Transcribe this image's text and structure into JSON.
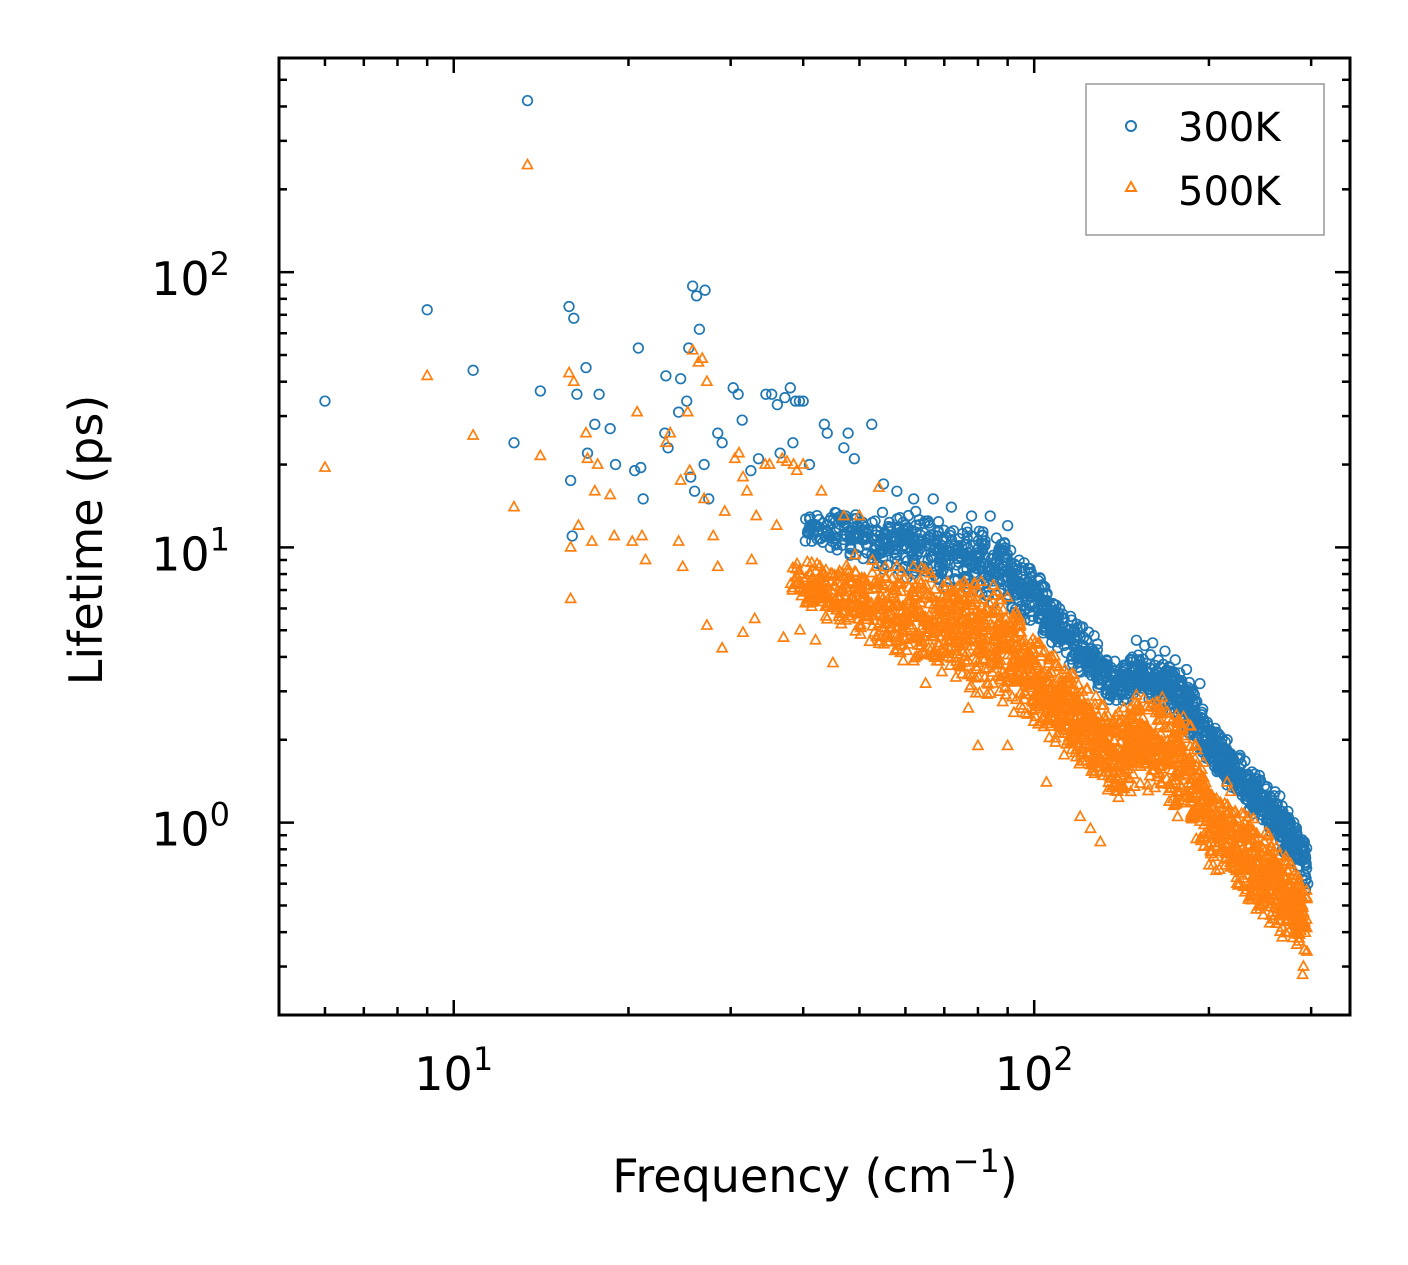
{
  "chart_data": {
    "type": "scatter",
    "title": "",
    "xlabel": "Frequency (cm",
    "xlabel_sup": "−1",
    "xlabel_end": ")",
    "ylabel": "Lifetime (ps)",
    "xscale": "log",
    "yscale": "log",
    "xlim": [
      5,
      350
    ],
    "ylim": [
      0.2,
      600
    ],
    "x_ticks": [
      {
        "value": 10,
        "base": "10",
        "exp": "1"
      },
      {
        "value": 100,
        "base": "10",
        "exp": "2"
      }
    ],
    "y_ticks": [
      {
        "value": 1,
        "base": "10",
        "exp": "0"
      },
      {
        "value": 10,
        "base": "10",
        "exp": "1"
      },
      {
        "value": 100,
        "base": "10",
        "exp": "2"
      }
    ],
    "legend": {
      "placement": "top-right"
    },
    "series": [
      {
        "name": "300K",
        "marker": "circle",
        "color": "#1f77b4",
        "points": [
          [
            6.0,
            34
          ],
          [
            9.0,
            73
          ],
          [
            10.8,
            44
          ],
          [
            12.7,
            24
          ],
          [
            13.4,
            420
          ],
          [
            14.1,
            37
          ],
          [
            15.8,
            75
          ],
          [
            16.1,
            68
          ],
          [
            16.3,
            36
          ],
          [
            16.9,
            45
          ],
          [
            17.5,
            28
          ],
          [
            17.8,
            36
          ],
          [
            18.6,
            27
          ],
          [
            15.9,
            17.5
          ],
          [
            16.0,
            11
          ],
          [
            17.0,
            22
          ],
          [
            19.0,
            20
          ],
          [
            20.5,
            19
          ],
          [
            21.0,
            19.5
          ],
          [
            21.2,
            15
          ],
          [
            20.8,
            53
          ],
          [
            23.2,
            42
          ],
          [
            24.6,
            41
          ],
          [
            25.4,
            53
          ],
          [
            25.8,
            89
          ],
          [
            26.2,
            82
          ],
          [
            26.5,
            62
          ],
          [
            27.1,
            86
          ],
          [
            23.1,
            26
          ],
          [
            23.4,
            23
          ],
          [
            24.4,
            31
          ],
          [
            25.2,
            34
          ],
          [
            25.6,
            18
          ],
          [
            26.0,
            16
          ],
          [
            27.0,
            20
          ],
          [
            27.5,
            15
          ],
          [
            28.5,
            26
          ],
          [
            29.0,
            24
          ],
          [
            30.3,
            38
          ],
          [
            30.9,
            36
          ],
          [
            31.4,
            29
          ],
          [
            32.5,
            19
          ],
          [
            33.5,
            21
          ],
          [
            34.5,
            36
          ],
          [
            35.3,
            36
          ],
          [
            36.1,
            33
          ],
          [
            37.2,
            35
          ],
          [
            38.0,
            38
          ],
          [
            38.8,
            34
          ],
          [
            39.4,
            34
          ],
          [
            40.0,
            34
          ],
          [
            36.5,
            22
          ],
          [
            38.4,
            24
          ],
          [
            41.0,
            20
          ],
          [
            43.5,
            28
          ],
          [
            44.0,
            26
          ],
          [
            47.0,
            23
          ],
          [
            47.8,
            26
          ],
          [
            49.0,
            21
          ],
          [
            52.5,
            28
          ],
          [
            55.0,
            17
          ],
          [
            58.0,
            16
          ],
          [
            62.0,
            15
          ],
          [
            67.0,
            15
          ],
          [
            72.0,
            14
          ],
          [
            78.0,
            13
          ],
          [
            84.0,
            13
          ],
          [
            90.0,
            12
          ],
          [
            150.0,
            4.6
          ],
          [
            155.0,
            4.4
          ],
          [
            160.0,
            4.5
          ],
          [
            168.0,
            4.2
          ],
          [
            175.0,
            3.9
          ],
          [
            183.0,
            3.6
          ],
          [
            193.0,
            3.2
          ],
          [
            205.0,
            2.2
          ],
          [
            215.0,
            2.0
          ],
          [
            225.0,
            1.7
          ],
          [
            240.0,
            1.5
          ],
          [
            252.0,
            1.35
          ],
          [
            265.0,
            1.25
          ],
          [
            280.0,
            1.0
          ],
          [
            292.0,
            0.85
          ],
          [
            296.0,
            0.6
          ]
        ]
      },
      {
        "name": "500K",
        "marker": "triangle",
        "color": "#ff7f0e",
        "points": [
          [
            6.0,
            19.5
          ],
          [
            9.0,
            42
          ],
          [
            10.8,
            25.5
          ],
          [
            12.7,
            14
          ],
          [
            13.4,
            245
          ],
          [
            14.1,
            21.5
          ],
          [
            15.8,
            43
          ],
          [
            16.1,
            40
          ],
          [
            15.9,
            10
          ],
          [
            15.9,
            6.5
          ],
          [
            16.4,
            12
          ],
          [
            16.9,
            26
          ],
          [
            17.0,
            21
          ],
          [
            17.5,
            16
          ],
          [
            17.7,
            20
          ],
          [
            17.3,
            10.5
          ],
          [
            18.6,
            15.5
          ],
          [
            18.9,
            11
          ],
          [
            20.3,
            10.5
          ],
          [
            20.7,
            31
          ],
          [
            21.1,
            11
          ],
          [
            21.4,
            9
          ],
          [
            23.2,
            24
          ],
          [
            23.6,
            26
          ],
          [
            24.6,
            17.5
          ],
          [
            24.4,
            10.5
          ],
          [
            24.8,
            8.5
          ],
          [
            25.3,
            31
          ],
          [
            25.5,
            19
          ],
          [
            25.8,
            52
          ],
          [
            26.4,
            47
          ],
          [
            26.8,
            48.5
          ],
          [
            27.3,
            40
          ],
          [
            27.0,
            15
          ],
          [
            28.0,
            11
          ],
          [
            28.5,
            8.5
          ],
          [
            29.3,
            13.5
          ],
          [
            30.5,
            21
          ],
          [
            31.0,
            22
          ],
          [
            31.5,
            18
          ],
          [
            32.0,
            16
          ],
          [
            32.6,
            9
          ],
          [
            33.2,
            13
          ],
          [
            34.4,
            20
          ],
          [
            35.0,
            20
          ],
          [
            36.0,
            12
          ],
          [
            36.8,
            21
          ],
          [
            37.5,
            20.5
          ],
          [
            38.5,
            20
          ],
          [
            39.0,
            19
          ],
          [
            40.0,
            20
          ],
          [
            27.3,
            5.2
          ],
          [
            29.0,
            4.3
          ],
          [
            31.5,
            4.9
          ],
          [
            33.0,
            5.5
          ],
          [
            37.0,
            4.7
          ],
          [
            39.5,
            5.0
          ],
          [
            42.0,
            4.6
          ],
          [
            45.0,
            3.8
          ],
          [
            43.0,
            16
          ],
          [
            47.0,
            13
          ],
          [
            50.0,
            13
          ],
          [
            54.0,
            16.5
          ],
          [
            65.0,
            3.2
          ],
          [
            77.0,
            2.6
          ],
          [
            80.0,
            1.9
          ],
          [
            90.0,
            1.9
          ],
          [
            105.0,
            1.4
          ],
          [
            120.0,
            1.05
          ],
          [
            125.0,
            0.95
          ],
          [
            130.0,
            0.85
          ],
          [
            138.0,
            1.3
          ],
          [
            150.0,
            2.9
          ],
          [
            160.0,
            2.7
          ],
          [
            170.0,
            2.5
          ],
          [
            180.0,
            2.2
          ],
          [
            190.0,
            1.9
          ],
          [
            200.0,
            0.7
          ],
          [
            215.0,
            1.4
          ],
          [
            230.0,
            1.0
          ],
          [
            248.0,
            0.8
          ],
          [
            262.0,
            0.68
          ],
          [
            275.0,
            0.55
          ],
          [
            285.0,
            0.4
          ],
          [
            291.0,
            0.3
          ],
          [
            295.0,
            0.34
          ],
          [
            290.0,
            0.28
          ]
        ]
      }
    ],
    "bands": [
      {
        "series": "300K",
        "count": 1600,
        "x_range": [
          40,
          295
        ],
        "upper": [
          [
            40,
            14
          ],
          [
            60,
            14
          ],
          [
            80,
            12
          ],
          [
            90,
            11
          ],
          [
            100,
            9
          ],
          [
            110,
            6.5
          ],
          [
            125,
            5.0
          ],
          [
            140,
            3.8
          ],
          [
            150,
            4.2
          ],
          [
            170,
            4.1
          ],
          [
            185,
            3.3
          ],
          [
            200,
            2.4
          ],
          [
            220,
            1.9
          ],
          [
            250,
            1.45
          ],
          [
            270,
            1.2
          ],
          [
            295,
            0.85
          ]
        ],
        "lower": [
          [
            40,
            10.5
          ],
          [
            60,
            7.5
          ],
          [
            80,
            6.5
          ],
          [
            100,
            5.0
          ],
          [
            120,
            3.3
          ],
          [
            140,
            2.6
          ],
          [
            150,
            2.9
          ],
          [
            180,
            2.2
          ],
          [
            200,
            1.6
          ],
          [
            230,
            1.15
          ],
          [
            260,
            0.85
          ],
          [
            295,
            0.55
          ]
        ]
      },
      {
        "series": "500K",
        "count": 2200,
        "x_range": [
          38,
          295
        ],
        "upper": [
          [
            38,
            9
          ],
          [
            50,
            9.5
          ],
          [
            60,
            9
          ],
          [
            75,
            8.5
          ],
          [
            90,
            7
          ],
          [
            100,
            5.0
          ],
          [
            120,
            3.5
          ],
          [
            140,
            2.6
          ],
          [
            150,
            3.1
          ],
          [
            170,
            2.9
          ],
          [
            185,
            2.5
          ],
          [
            200,
            1.55
          ],
          [
            220,
            1.3
          ],
          [
            250,
            1.0
          ],
          [
            270,
            0.82
          ],
          [
            295,
            0.6
          ]
        ],
        "lower": [
          [
            38,
            6.5
          ],
          [
            50,
            4.2
          ],
          [
            60,
            3.6
          ],
          [
            75,
            3.0
          ],
          [
            90,
            2.4
          ],
          [
            100,
            2.2
          ],
          [
            120,
            1.5
          ],
          [
            140,
            1.15
          ],
          [
            150,
            1.35
          ],
          [
            180,
            1.0
          ],
          [
            200,
            0.65
          ],
          [
            230,
            0.5
          ],
          [
            260,
            0.4
          ],
          [
            295,
            0.3
          ]
        ]
      }
    ]
  }
}
